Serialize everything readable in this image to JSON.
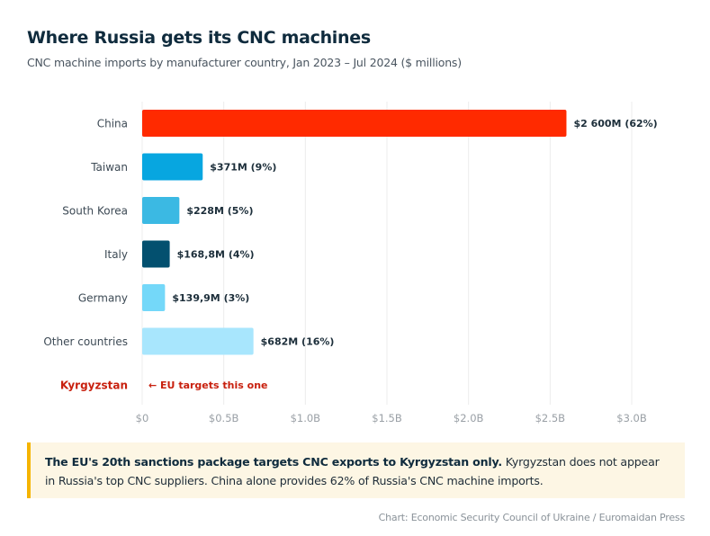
{
  "header": {
    "title": "Where Russia gets its CNC machines",
    "subtitle": "CNC machine imports by manufacturer country, Jan 2023 – Jul 2024 ($ millions)"
  },
  "chart_data": {
    "type": "bar",
    "orientation": "horizontal",
    "title": "Where Russia gets its CNC machines",
    "subtitle": "CNC machine imports by manufacturer country, Jan 2023 – Jul 2024 ($ millions)",
    "categories": [
      "China",
      "Taiwan",
      "South Korea",
      "Italy",
      "Germany",
      "Other countries",
      "Kyrgyzstan"
    ],
    "values": [
      2600,
      371,
      228,
      168.8,
      139.9,
      682,
      null
    ],
    "data_labels": [
      "$2 600M (62%)",
      "$371M (9%)",
      "$228M (5%)",
      "$168,8M (4%)",
      "$139,9M (3%)",
      "$682M (16%)",
      ""
    ],
    "colors": [
      "#ff2a00",
      "#07a6e0",
      "#3bb9e3",
      "#03506f",
      "#74d8f9",
      "#a8e6fd",
      null
    ],
    "highlight_category": {
      "label": "Kyrgyzstan",
      "annotation": "← EU targets this one",
      "color": "#c8200e"
    },
    "xlim": [
      0,
      3000
    ],
    "x_ticks": [
      0,
      500,
      1000,
      1500,
      2000,
      2500,
      3000
    ],
    "x_tick_labels": [
      "$0",
      "$0.5B",
      "$1.0B",
      "$1.5B",
      "$2.0B",
      "$2.5B",
      "$3.0B"
    ],
    "grid": "vertical",
    "legend": "none"
  },
  "note": {
    "bold": "The EU's 20th sanctions package targets CNC exports to Kyrgyzstan only.",
    "text": " Kyrgyzstan does not appear in Russia's top CNC suppliers. China alone provides 62% of Russia's CNC machine imports."
  },
  "source": "Chart: Economic Security Council of Ukraine / Euromaidan Press"
}
